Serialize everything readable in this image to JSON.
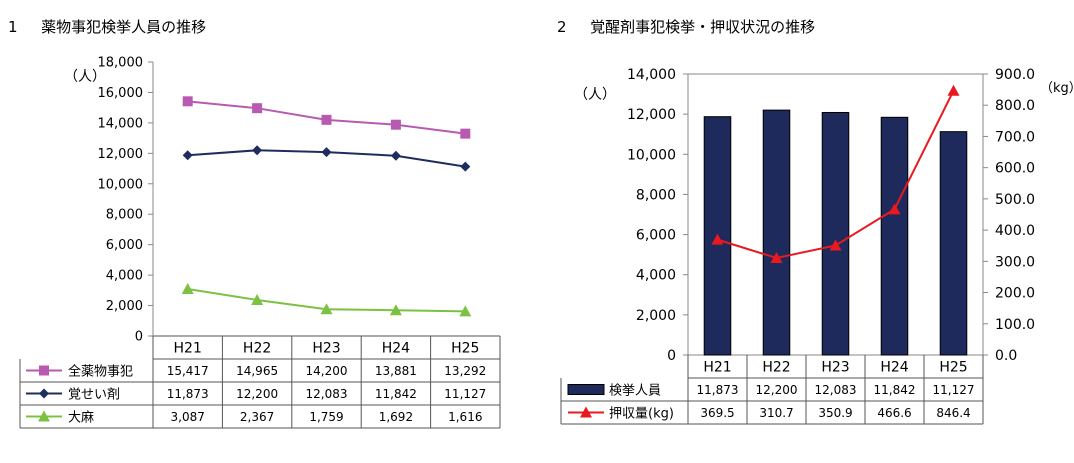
{
  "chart_data": [
    {
      "type": "line",
      "number": "1",
      "title": "薬物事犯検挙人員の推移",
      "ylabel": "（人）",
      "ylim": [
        0,
        18000
      ],
      "yticks": [
        "0",
        "2,000",
        "4,000",
        "6,000",
        "8,000",
        "10,000",
        "12,000",
        "14,000",
        "16,000",
        "18,000"
      ],
      "categories": [
        "H21",
        "H22",
        "H23",
        "H24",
        "H25"
      ],
      "legend_placement": "data-table",
      "series": [
        {
          "name": "全薬物事犯",
          "values": [
            15417,
            14965,
            14200,
            13881,
            13292
          ],
          "labels": [
            "15,417",
            "14,965",
            "14,200",
            "13,881",
            "13,292"
          ],
          "color": "#b85ab1",
          "marker": "square"
        },
        {
          "name": "覚せい剤",
          "values": [
            11873,
            12200,
            12083,
            11842,
            11127
          ],
          "labels": [
            "11,873",
            "12,200",
            "12,083",
            "11,842",
            "11,127"
          ],
          "color": "#1f2d5e",
          "marker": "diamond"
        },
        {
          "name": "大麻",
          "values": [
            3087,
            2367,
            1759,
            1692,
            1616
          ],
          "labels": [
            "3,087",
            "2,367",
            "1,759",
            "1,692",
            "1,616"
          ],
          "color": "#7cc142",
          "marker": "triangle"
        }
      ]
    },
    {
      "type": "bar",
      "number": "2",
      "title": "覚醒剤事犯検挙・押収状況の推移",
      "ylabel": "（人）",
      "y2label": "（kg）",
      "ylim": [
        0,
        14000
      ],
      "y2lim": [
        0,
        900
      ],
      "yticks": [
        "0",
        "2,000",
        "4,000",
        "6,000",
        "8,000",
        "10,000",
        "12,000",
        "14,000"
      ],
      "y2ticks": [
        "0.0",
        "100.0",
        "200.0",
        "300.0",
        "400.0",
        "500.0",
        "600.0",
        "700.0",
        "800.0",
        "900.0"
      ],
      "categories": [
        "H21",
        "H22",
        "H23",
        "H24",
        "H25"
      ],
      "legend_placement": "data-table",
      "series": [
        {
          "name": "検挙人員",
          "type": "bar",
          "axis": "left",
          "values": [
            11873,
            12200,
            12083,
            11842,
            11127
          ],
          "labels": [
            "11,873",
            "12,200",
            "12,083",
            "11,842",
            "11,127"
          ],
          "color": "#1f2a5c"
        },
        {
          "name": "押収量(kg)",
          "type": "line",
          "axis": "right",
          "values": [
            369.5,
            310.7,
            350.9,
            466.6,
            846.4
          ],
          "labels": [
            "369.5",
            "310.7",
            "350.9",
            "466.6",
            "846.4"
          ],
          "color": "#e8191f",
          "marker": "triangle"
        }
      ]
    }
  ]
}
